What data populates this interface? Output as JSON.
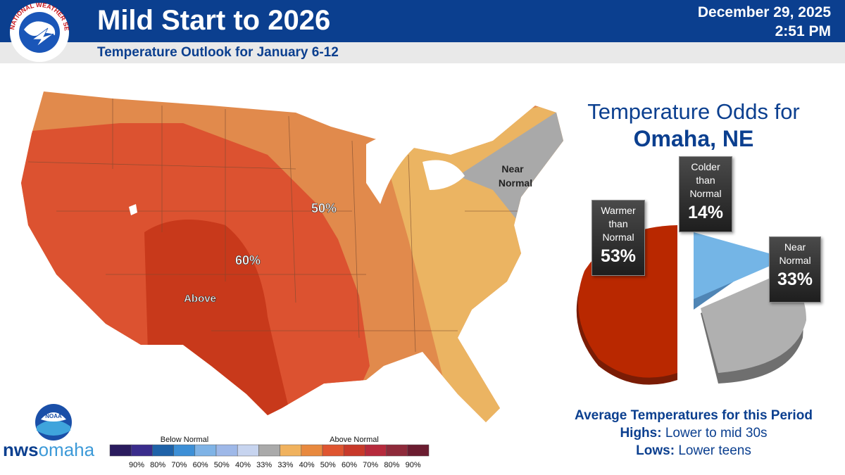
{
  "header": {
    "title": "Mild Start to 2026",
    "subtitle": "Temperature Outlook for January 6-12",
    "date": "December 29, 2025",
    "time": "2:51 PM",
    "logo_text": "NATIONAL WEATHER SERVICE"
  },
  "map": {
    "labels": {
      "p50": "50%",
      "p60": "60%",
      "above": "Above",
      "near_normal_line1": "Near",
      "near_normal_line2": "Normal"
    },
    "colors": {
      "above_60": "#c8391b",
      "above_50": "#dc5230",
      "above_40": "#e18a4c",
      "above_33": "#ebb462",
      "near_normal": "#a9a9a9"
    }
  },
  "odds": {
    "title_line1": "Temperature Odds for",
    "title_line2": "Omaha, NE",
    "slices": [
      {
        "name": "warmer",
        "label": "Warmer than Normal",
        "label_l1": "Warmer",
        "label_l2": "than",
        "label_l3": "Normal",
        "pct": "53%",
        "value": 53,
        "color": "#b92800"
      },
      {
        "name": "colder",
        "label": "Colder than Normal",
        "label_l1": "Colder",
        "label_l2": "than",
        "label_l3": "Normal",
        "pct": "14%",
        "value": 14,
        "color": "#74b5e6"
      },
      {
        "name": "near",
        "label": "Near Normal",
        "label_l1": "Near",
        "label_l2": "Normal",
        "pct": "33%",
        "value": 33,
        "color": "#b0b0b0"
      }
    ]
  },
  "averages": {
    "heading": "Average Temperatures for this Period",
    "highs_label": "Highs:",
    "highs_value": "Lower to mid 30s",
    "lows_label": "Lows:",
    "lows_value": "Lower teens"
  },
  "legend": {
    "below_label": "Below Normal",
    "above_label": "Above Normal",
    "ticks": [
      "90%",
      "80%",
      "70%",
      "60%",
      "50%",
      "40%",
      "33%",
      "33%",
      "40%",
      "50%",
      "60%",
      "70%",
      "80%",
      "90%"
    ],
    "colors": [
      "#2a1b5e",
      "#3a2c8c",
      "#1f62a8",
      "#3d8fd6",
      "#7fb3e6",
      "#9eb8e8",
      "#c7d4ef",
      "#aaaaaa",
      "#f0b25e",
      "#e8893e",
      "#df5530",
      "#c8392a",
      "#b62a3c",
      "#8e2a3a",
      "#6b1c30"
    ]
  },
  "branding": {
    "noaa": "NOAA",
    "nws_bold": "nws",
    "nws_light": "omaha"
  }
}
